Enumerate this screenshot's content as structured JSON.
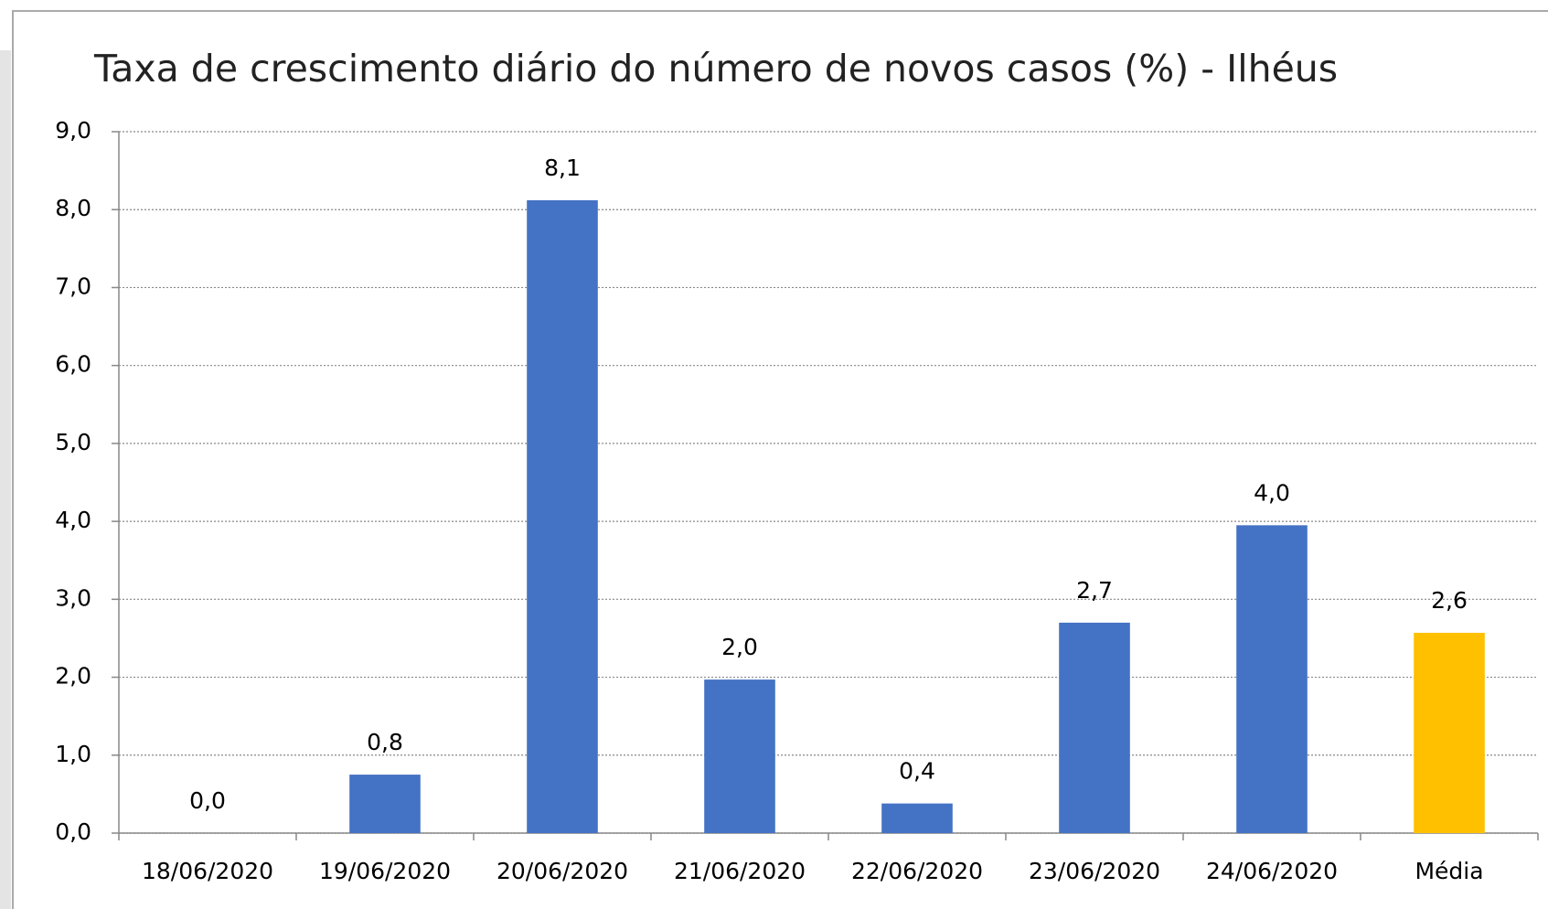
{
  "chart_data": {
    "type": "bar",
    "title": "Taxa de crescimento diário do número de novos casos (%) - Ilhéus",
    "categories": [
      "18/06/2020",
      "19/06/2020",
      "20/06/2020",
      "21/06/2020",
      "22/06/2020",
      "23/06/2020",
      "24/06/2020",
      "Média"
    ],
    "values": [
      0.0,
      0.75,
      8.12,
      1.97,
      0.38,
      2.7,
      3.95,
      2.57
    ],
    "value_labels": [
      "0,0",
      "0,8",
      "8,1",
      "2,0",
      "0,4",
      "2,7",
      "4,0",
      "2,6"
    ],
    "colors": [
      "#4472c4",
      "#4472c4",
      "#4472c4",
      "#4472c4",
      "#4472c4",
      "#4472c4",
      "#4472c4",
      "#ffc000"
    ],
    "ylim": [
      0,
      9
    ],
    "yticks": [
      {
        "value": 0,
        "label": "0,0"
      },
      {
        "value": 1,
        "label": "1,0"
      },
      {
        "value": 2,
        "label": "2,0"
      },
      {
        "value": 3,
        "label": "3,0"
      },
      {
        "value": 4,
        "label": "4,0"
      },
      {
        "value": 5,
        "label": "5,0"
      },
      {
        "value": 6,
        "label": "6,0"
      },
      {
        "value": 7,
        "label": "7,0"
      },
      {
        "value": 8,
        "label": "8,0"
      },
      {
        "value": 9,
        "label": "9,0"
      }
    ],
    "grid": true
  }
}
